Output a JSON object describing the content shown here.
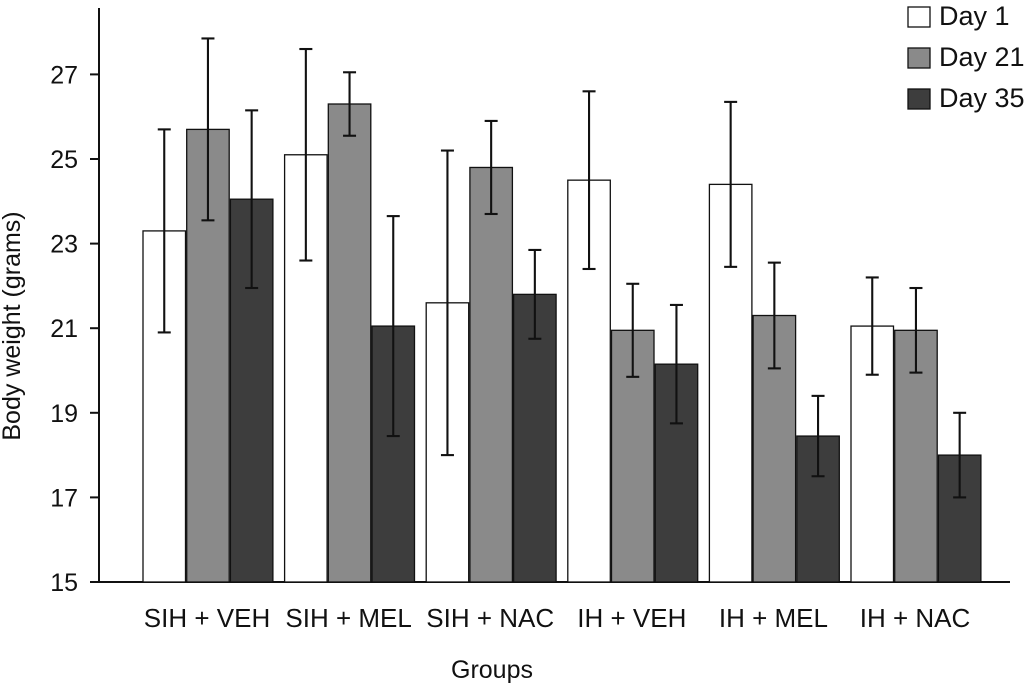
{
  "chart_data": {
    "type": "bar",
    "title": "",
    "xlabel": "Groups",
    "ylabel": "Body weight (grams)",
    "ylim": [
      15,
      28
    ],
    "yticks": [
      15,
      17,
      19,
      21,
      23,
      25,
      27
    ],
    "categories": [
      "SIH + VEH",
      "SIH + MEL",
      "SIH + NAC",
      "IH + VEH",
      "IH + MEL",
      "IH + NAC"
    ],
    "legend_position": "top-right",
    "series": [
      {
        "name": "Day 1",
        "color": "#ffffff",
        "values": [
          23.3,
          25.1,
          21.6,
          24.5,
          24.4,
          21.05
        ],
        "errors": [
          2.4,
          2.5,
          3.6,
          2.1,
          1.95,
          1.15
        ]
      },
      {
        "name": "Day 21",
        "color": "#8a8a8a",
        "values": [
          25.7,
          26.3,
          24.8,
          20.95,
          21.3,
          20.95
        ],
        "errors": [
          2.15,
          0.75,
          1.1,
          1.1,
          1.25,
          1.0
        ]
      },
      {
        "name": "Day 35",
        "color": "#3d3d3d",
        "values": [
          24.05,
          21.05,
          21.8,
          20.15,
          18.45,
          18.0
        ],
        "errors": [
          2.1,
          2.6,
          1.05,
          1.4,
          0.95,
          1.0
        ]
      }
    ]
  }
}
